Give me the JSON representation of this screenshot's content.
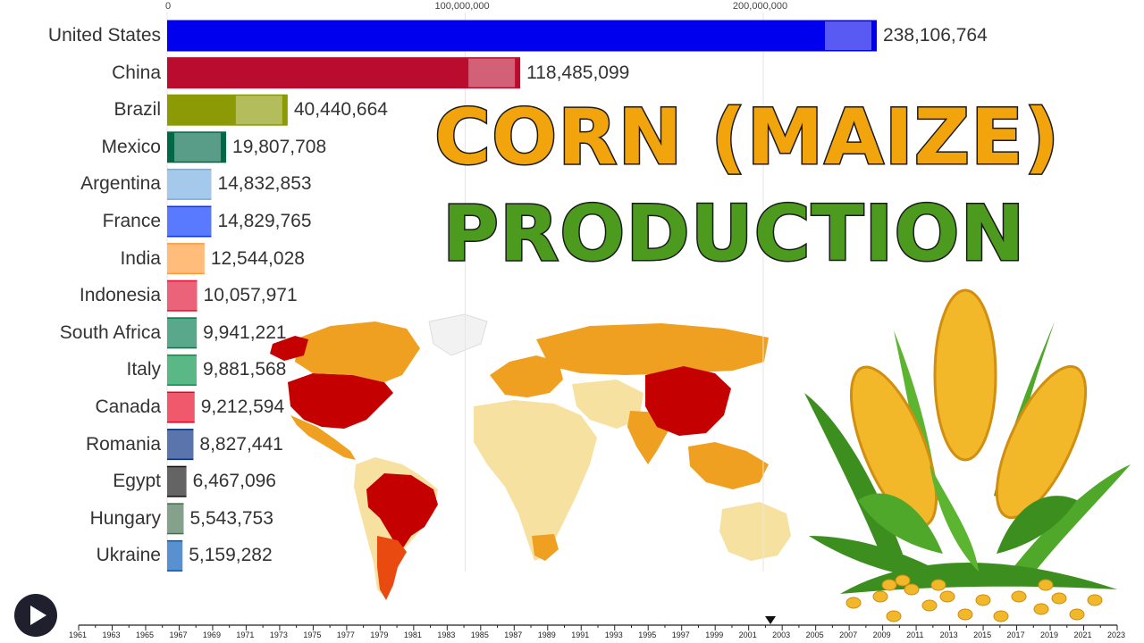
{
  "title": {
    "line1": "CORN (MAIZE)",
    "line2": "PRODUCTION"
  },
  "icons": {
    "play": "play-icon",
    "corn": "corn-illustration",
    "map": "world-map-choropleth"
  },
  "colors": {
    "title_orange": "#f2a40d",
    "title_green": "#4c9b1f",
    "map_high": "#c40000",
    "map_mid": "#f0a020",
    "map_low": "#f7e1a0"
  },
  "chart_data": {
    "type": "bar",
    "orientation": "horizontal",
    "categories": [
      "United States",
      "China",
      "Brazil",
      "Mexico",
      "Argentina",
      "France",
      "India",
      "Indonesia",
      "South Africa",
      "Italy",
      "Canada",
      "Romania",
      "Egypt",
      "Hungary",
      "Ukraine"
    ],
    "values": [
      238106764,
      118485099,
      40440664,
      19807708,
      14832853,
      14829765,
      12544028,
      10057971,
      9941221,
      9881568,
      9212594,
      8827441,
      6467096,
      5543753,
      5159282
    ],
    "value_labels": [
      "238,106,764",
      "118,485,099",
      "40,440,664",
      "19,807,708",
      "14,832,853",
      "14,829,765",
      "12,544,028",
      "10,057,971",
      "9,941,221",
      "9,881,568",
      "9,212,594",
      "8,827,441",
      "6,467,096",
      "5,543,753",
      "5,159,282"
    ],
    "bar_colors": [
      "#0000ee",
      "#ba0c2f",
      "#8b9a05",
      "#006847",
      "#74acdf",
      "#0033ff",
      "#ff9933",
      "#e01030",
      "#007a4d",
      "#009246",
      "#e8001c",
      "#002b7f",
      "#111111",
      "#436f4d",
      "#0057b7"
    ],
    "x_ticks": [
      0,
      100000000,
      200000000
    ],
    "x_tick_labels": [
      "0",
      "100,000,000",
      "200,000,000"
    ],
    "xlim": [
      0,
      238106764
    ],
    "grid": true,
    "timeline": {
      "years": [
        "1961",
        "1963",
        "1965",
        "1967",
        "1969",
        "1971",
        "1973",
        "1975",
        "1977",
        "1979",
        "1981",
        "1983",
        "1985",
        "1987",
        "1989",
        "1991",
        "1993",
        "1995",
        "1997",
        "1999",
        "2001",
        "2003",
        "2005",
        "2007",
        "2009",
        "2011",
        "2013",
        "2015",
        "2017",
        "2019",
        "2021",
        "2023"
      ],
      "start": 1961,
      "end": 2023,
      "current": 2002.3
    }
  }
}
